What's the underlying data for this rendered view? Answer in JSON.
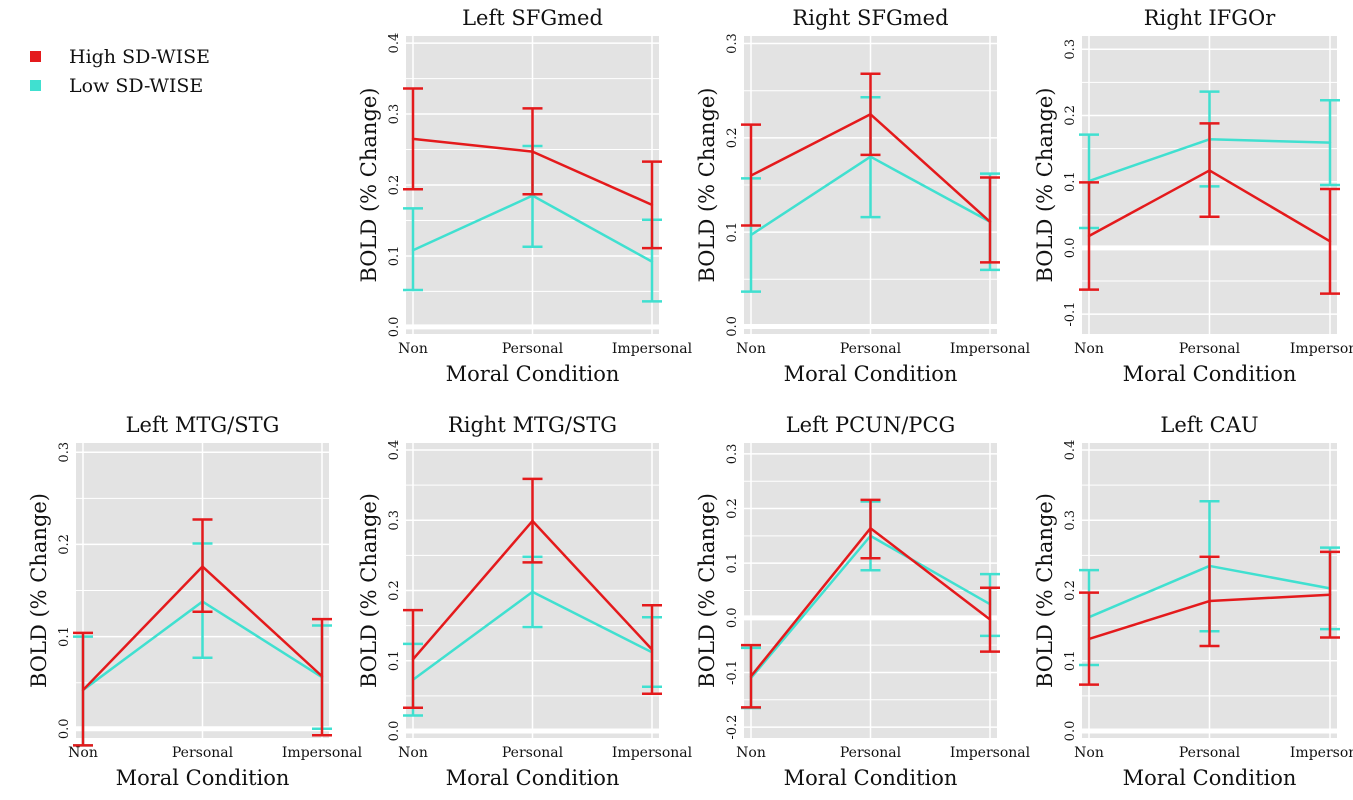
{
  "legend": [
    {
      "label": "High SD-WISE",
      "color": "#e41a1c"
    },
    {
      "label": "Low SD-WISE",
      "color": "#40e0d0"
    }
  ],
  "colors": {
    "panel": "#e3e3e3",
    "grid": "#ffffff"
  },
  "chart_data": [
    {
      "type": "line",
      "title": "Left SFGmed",
      "xlabel": "Moral Condition",
      "ylabel": "BOLD (% Change)",
      "categories": [
        "Non",
        "Personal",
        "Impersonal"
      ],
      "ylim": [
        -0.01,
        0.41
      ],
      "yticks": [
        0.0,
        0.1,
        0.2,
        0.3,
        0.4
      ],
      "ytick_labels": [
        "0.0",
        "0.1",
        "0.2",
        "0.3",
        "0.4"
      ],
      "series": [
        {
          "name": "High SD-WISE",
          "color": "#e41a1c",
          "values": [
            0.265,
            0.247,
            0.172
          ],
          "error_low": [
            0.194,
            0.187,
            0.111
          ],
          "error_high": [
            0.336,
            0.308,
            0.233
          ]
        },
        {
          "name": "Low SD-WISE",
          "color": "#40e0d0",
          "values": [
            0.108,
            0.185,
            0.092
          ],
          "error_low": [
            0.052,
            0.113,
            0.036
          ],
          "error_high": [
            0.167,
            0.255,
            0.151
          ]
        }
      ]
    },
    {
      "type": "line",
      "title": "Right SFGmed",
      "xlabel": "Moral Condition",
      "ylabel": "BOLD (% Change)",
      "categories": [
        "Non",
        "Personal",
        "Impersonal"
      ],
      "ylim": [
        -0.008,
        0.308
      ],
      "yticks": [
        0.0,
        0.1,
        0.2,
        0.3
      ],
      "ytick_labels": [
        "0.0",
        "0.1",
        "0.2",
        "0.3"
      ],
      "series": [
        {
          "name": "High SD-WISE",
          "color": "#e41a1c",
          "values": [
            0.16,
            0.225,
            0.111
          ],
          "error_low": [
            0.107,
            0.182,
            0.068
          ],
          "error_high": [
            0.214,
            0.268,
            0.158
          ]
        },
        {
          "name": "Low SD-WISE",
          "color": "#40e0d0",
          "values": [
            0.097,
            0.18,
            0.111
          ],
          "error_low": [
            0.037,
            0.116,
            0.06
          ],
          "error_high": [
            0.157,
            0.243,
            0.162
          ]
        }
      ]
    },
    {
      "type": "line",
      "title": "Right IFGOr",
      "xlabel": "Moral Condition",
      "ylabel": "BOLD (% Change)",
      "categories": [
        "Non",
        "Personal",
        "Impersonal"
      ],
      "ylim": [
        -0.13,
        0.32
      ],
      "yticks": [
        -0.1,
        0.0,
        0.1,
        0.2,
        0.3
      ],
      "ytick_labels": [
        "-0.1",
        "0.0",
        "0.1",
        "0.2",
        "0.3"
      ],
      "series": [
        {
          "name": "High SD-WISE",
          "color": "#e41a1c",
          "values": [
            0.018,
            0.117,
            0.01
          ],
          "error_low": [
            -0.063,
            0.047,
            -0.069
          ],
          "error_high": [
            0.099,
            0.188,
            0.089
          ]
        },
        {
          "name": "Low SD-WISE",
          "color": "#40e0d0",
          "values": [
            0.101,
            0.164,
            0.159
          ],
          "error_low": [
            0.03,
            0.093,
            0.095
          ],
          "error_high": [
            0.171,
            0.236,
            0.223
          ]
        }
      ]
    },
    {
      "type": "line",
      "title": "Left MTG/STG",
      "xlabel": "Moral Condition",
      "ylabel": "BOLD (% Change)",
      "categories": [
        "Non",
        "Personal",
        "Impersonal"
      ],
      "ylim": [
        -0.01,
        0.31
      ],
      "yticks": [
        0.0,
        0.1,
        0.2,
        0.3
      ],
      "ytick_labels": [
        "0.0",
        "0.1",
        "0.2",
        "0.3"
      ],
      "series": [
        {
          "name": "High SD-WISE",
          "color": "#e41a1c",
          "values": [
            0.042,
            0.176,
            0.057
          ],
          "error_low": [
            -0.018,
            0.127,
            -0.007
          ],
          "error_high": [
            0.104,
            0.227,
            0.119
          ]
        },
        {
          "name": "Low SD-WISE",
          "color": "#40e0d0",
          "values": [
            0.042,
            0.138,
            0.056
          ],
          "error_low": [
            -0.018,
            0.077,
            0.0
          ],
          "error_high": [
            0.1,
            0.201,
            0.112
          ]
        }
      ]
    },
    {
      "type": "line",
      "title": "Right MTG/STG",
      "xlabel": "Moral Condition",
      "ylabel": "BOLD (% Change)",
      "categories": [
        "Non",
        "Personal",
        "Impersonal"
      ],
      "ylim": [
        -0.01,
        0.41
      ],
      "yticks": [
        0.0,
        0.1,
        0.2,
        0.3,
        0.4
      ],
      "ytick_labels": [
        "0.0",
        "0.1",
        "0.2",
        "0.3",
        "0.4"
      ],
      "series": [
        {
          "name": "High SD-WISE",
          "color": "#e41a1c",
          "values": [
            0.102,
            0.299,
            0.116
          ],
          "error_low": [
            0.033,
            0.24,
            0.053
          ],
          "error_high": [
            0.172,
            0.359,
            0.179
          ]
        },
        {
          "name": "Low SD-WISE",
          "color": "#40e0d0",
          "values": [
            0.073,
            0.198,
            0.112
          ],
          "error_low": [
            0.022,
            0.148,
            0.063
          ],
          "error_high": [
            0.124,
            0.248,
            0.162
          ]
        }
      ]
    },
    {
      "type": "line",
      "title": "Left PCUN/PCG",
      "xlabel": "Moral Condition",
      "ylabel": "BOLD (% Change)",
      "categories": [
        "Non",
        "Personal",
        "Impersonal"
      ],
      "ylim": [
        -0.22,
        0.32
      ],
      "yticks": [
        -0.2,
        -0.1,
        0.0,
        0.1,
        0.2,
        0.3
      ],
      "ytick_labels": [
        "-0.2",
        "-0.1",
        "0.0",
        "0.1",
        "0.2",
        "0.3"
      ],
      "series": [
        {
          "name": "High SD-WISE",
          "color": "#e41a1c",
          "values": [
            -0.107,
            0.164,
            -0.003
          ],
          "error_low": [
            -0.164,
            0.109,
            -0.062
          ],
          "error_high": [
            -0.05,
            0.216,
            0.055
          ]
        },
        {
          "name": "Low SD-WISE",
          "color": "#40e0d0",
          "values": [
            -0.11,
            0.15,
            0.025
          ],
          "error_low": [
            -0.165,
            0.087,
            -0.033
          ],
          "error_high": [
            -0.055,
            0.213,
            0.08
          ]
        }
      ]
    },
    {
      "type": "line",
      "title": "Left CAU",
      "xlabel": "Moral Condition",
      "ylabel": "BOLD (% Change)",
      "categories": [
        "Non",
        "Personal",
        "Impersonal"
      ],
      "ylim": [
        -0.01,
        0.41
      ],
      "yticks": [
        0.0,
        0.1,
        0.2,
        0.3,
        0.4
      ],
      "ytick_labels": [
        "0.0",
        "0.1",
        "0.2",
        "0.3",
        "0.4"
      ],
      "series": [
        {
          "name": "High SD-WISE",
          "color": "#e41a1c",
          "values": [
            0.131,
            0.185,
            0.194
          ],
          "error_low": [
            0.066,
            0.121,
            0.133
          ],
          "error_high": [
            0.197,
            0.248,
            0.255
          ]
        },
        {
          "name": "Low SD-WISE",
          "color": "#40e0d0",
          "values": [
            0.162,
            0.235,
            0.203
          ],
          "error_low": [
            0.094,
            0.142,
            0.145
          ],
          "error_high": [
            0.229,
            0.327,
            0.261
          ]
        }
      ]
    }
  ]
}
